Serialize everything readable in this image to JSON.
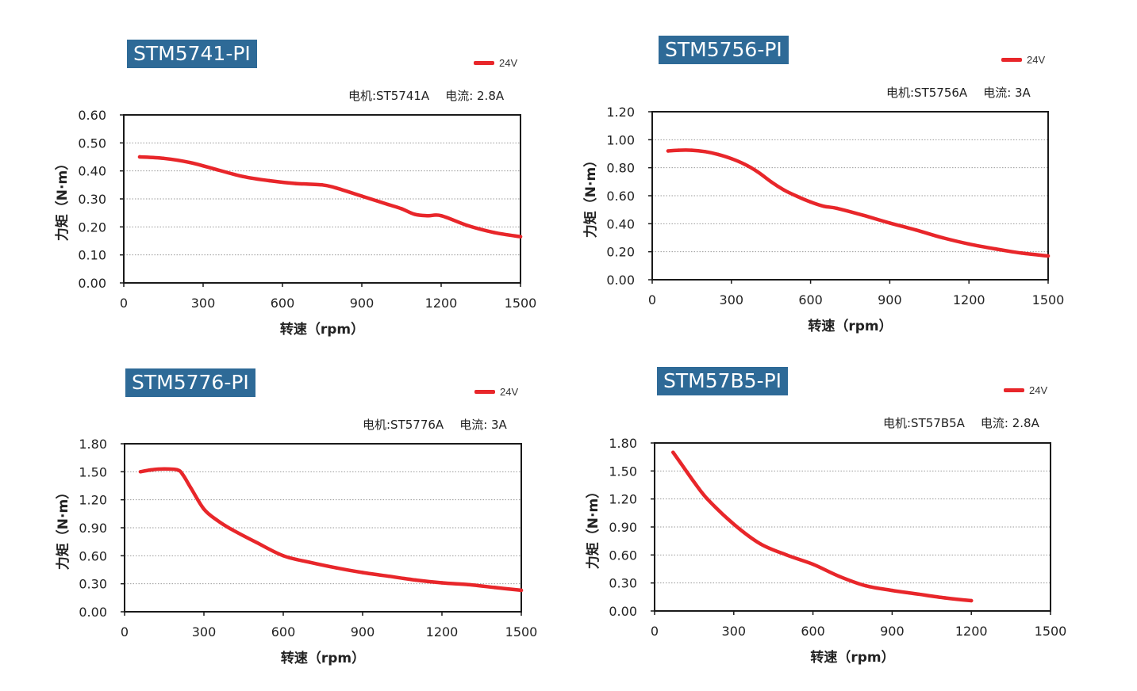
{
  "colors": {
    "label_bg": "#2e6a97",
    "curve": "#e8262a",
    "frame": "#1a1a1a",
    "grid": "#9a9a9a"
  },
  "charts": [
    {
      "model": "STM5741-PI",
      "legend": "24V",
      "motor_label": "电机:ST5741A",
      "current_label": "电流: 2.8A",
      "yticks": [
        "0.00",
        "0.10",
        "0.20",
        "0.30",
        "0.40",
        "0.50",
        "0.60"
      ],
      "ymax": 0.6
    },
    {
      "model": "STM5756-PI",
      "legend": "24V",
      "motor_label": "电机:ST5756A",
      "current_label": "电流: 3A",
      "yticks": [
        "0.00",
        "0.20",
        "0.40",
        "0.60",
        "0.80",
        "1.00",
        "1.20"
      ],
      "ymax": 1.2
    },
    {
      "model": "STM5776-PI",
      "legend": "24V",
      "motor_label": "电机:ST5776A",
      "current_label": "电流: 3A",
      "yticks": [
        "0.00",
        "0.30",
        "0.60",
        "0.90",
        "1.20",
        "1.50",
        "1.80"
      ],
      "ymax": 1.8
    },
    {
      "model": "STM57B5-PI",
      "legend": "24V",
      "motor_label": "电机:ST57B5A",
      "current_label": "电流: 2.8A",
      "yticks": [
        "0.00",
        "0.30",
        "0.60",
        "0.90",
        "1.20",
        "1.50",
        "1.80"
      ],
      "ymax": 1.8
    }
  ],
  "chart_data": [
    {
      "type": "line",
      "title": "STM5741-PI",
      "xlabel": "转速（rpm）",
      "ylabel": "力矩（N·m）",
      "xlim": [
        0,
        1500
      ],
      "ylim": [
        0,
        0.6
      ],
      "grid": true,
      "legend_position": "top-right",
      "xticks": [
        "0",
        "300",
        "600",
        "900",
        "1200",
        "1500"
      ],
      "series": [
        {
          "name": "24V",
          "x": [
            60,
            150,
            250,
            350,
            450,
            550,
            650,
            750,
            800,
            900,
            1000,
            1050,
            1100,
            1150,
            1200,
            1300,
            1400,
            1500
          ],
          "y": [
            0.45,
            0.445,
            0.43,
            0.405,
            0.38,
            0.365,
            0.355,
            0.35,
            0.34,
            0.31,
            0.28,
            0.265,
            0.245,
            0.24,
            0.24,
            0.205,
            0.18,
            0.165
          ]
        }
      ]
    },
    {
      "type": "line",
      "title": "STM5756-PI",
      "xlabel": "转速（rpm）",
      "ylabel": "力矩（N·m）",
      "xlim": [
        0,
        1500
      ],
      "ylim": [
        0,
        1.2
      ],
      "grid": true,
      "legend_position": "top-right",
      "xticks": [
        "0",
        "300",
        "600",
        "900",
        "1200",
        "1500"
      ],
      "series": [
        {
          "name": "24V",
          "x": [
            60,
            100,
            150,
            200,
            250,
            300,
            350,
            400,
            450,
            500,
            550,
            600,
            650,
            700,
            800,
            900,
            1000,
            1100,
            1200,
            1300,
            1400,
            1500
          ],
          "y": [
            0.92,
            0.925,
            0.925,
            0.915,
            0.895,
            0.865,
            0.825,
            0.77,
            0.7,
            0.64,
            0.595,
            0.555,
            0.525,
            0.51,
            0.46,
            0.405,
            0.355,
            0.3,
            0.255,
            0.22,
            0.19,
            0.17
          ]
        }
      ]
    },
    {
      "type": "line",
      "title": "STM5776-PI",
      "xlabel": "转速（rpm）",
      "ylabel": "力矩（N·m）",
      "xlim": [
        0,
        1500
      ],
      "ylim": [
        0,
        1.8
      ],
      "grid": true,
      "legend_position": "top-right",
      "xticks": [
        "0",
        "300",
        "600",
        "900",
        "1200",
        "1500"
      ],
      "series": [
        {
          "name": "24V",
          "x": [
            60,
            100,
            150,
            200,
            220,
            250,
            300,
            350,
            400,
            500,
            600,
            700,
            800,
            900,
            1000,
            1100,
            1200,
            1300,
            1400,
            1500
          ],
          "y": [
            1.5,
            1.52,
            1.53,
            1.52,
            1.47,
            1.33,
            1.1,
            0.98,
            0.89,
            0.74,
            0.6,
            0.53,
            0.47,
            0.42,
            0.38,
            0.34,
            0.31,
            0.29,
            0.26,
            0.23
          ]
        }
      ]
    },
    {
      "type": "line",
      "title": "STM57B5-PI",
      "xlabel": "转速（rpm）",
      "ylabel": "力矩（N·m）",
      "xlim": [
        0,
        1500
      ],
      "ylim": [
        0,
        1.8
      ],
      "grid": true,
      "legend_position": "top-right",
      "xticks": [
        "0",
        "300",
        "600",
        "900",
        "1200",
        "1500"
      ],
      "series": [
        {
          "name": "24V",
          "x": [
            70,
            100,
            150,
            200,
            300,
            400,
            500,
            600,
            700,
            800,
            900,
            1000,
            1100,
            1200
          ],
          "y": [
            1.7,
            1.58,
            1.38,
            1.2,
            0.93,
            0.72,
            0.6,
            0.5,
            0.37,
            0.27,
            0.22,
            0.18,
            0.14,
            0.11
          ]
        }
      ]
    }
  ]
}
